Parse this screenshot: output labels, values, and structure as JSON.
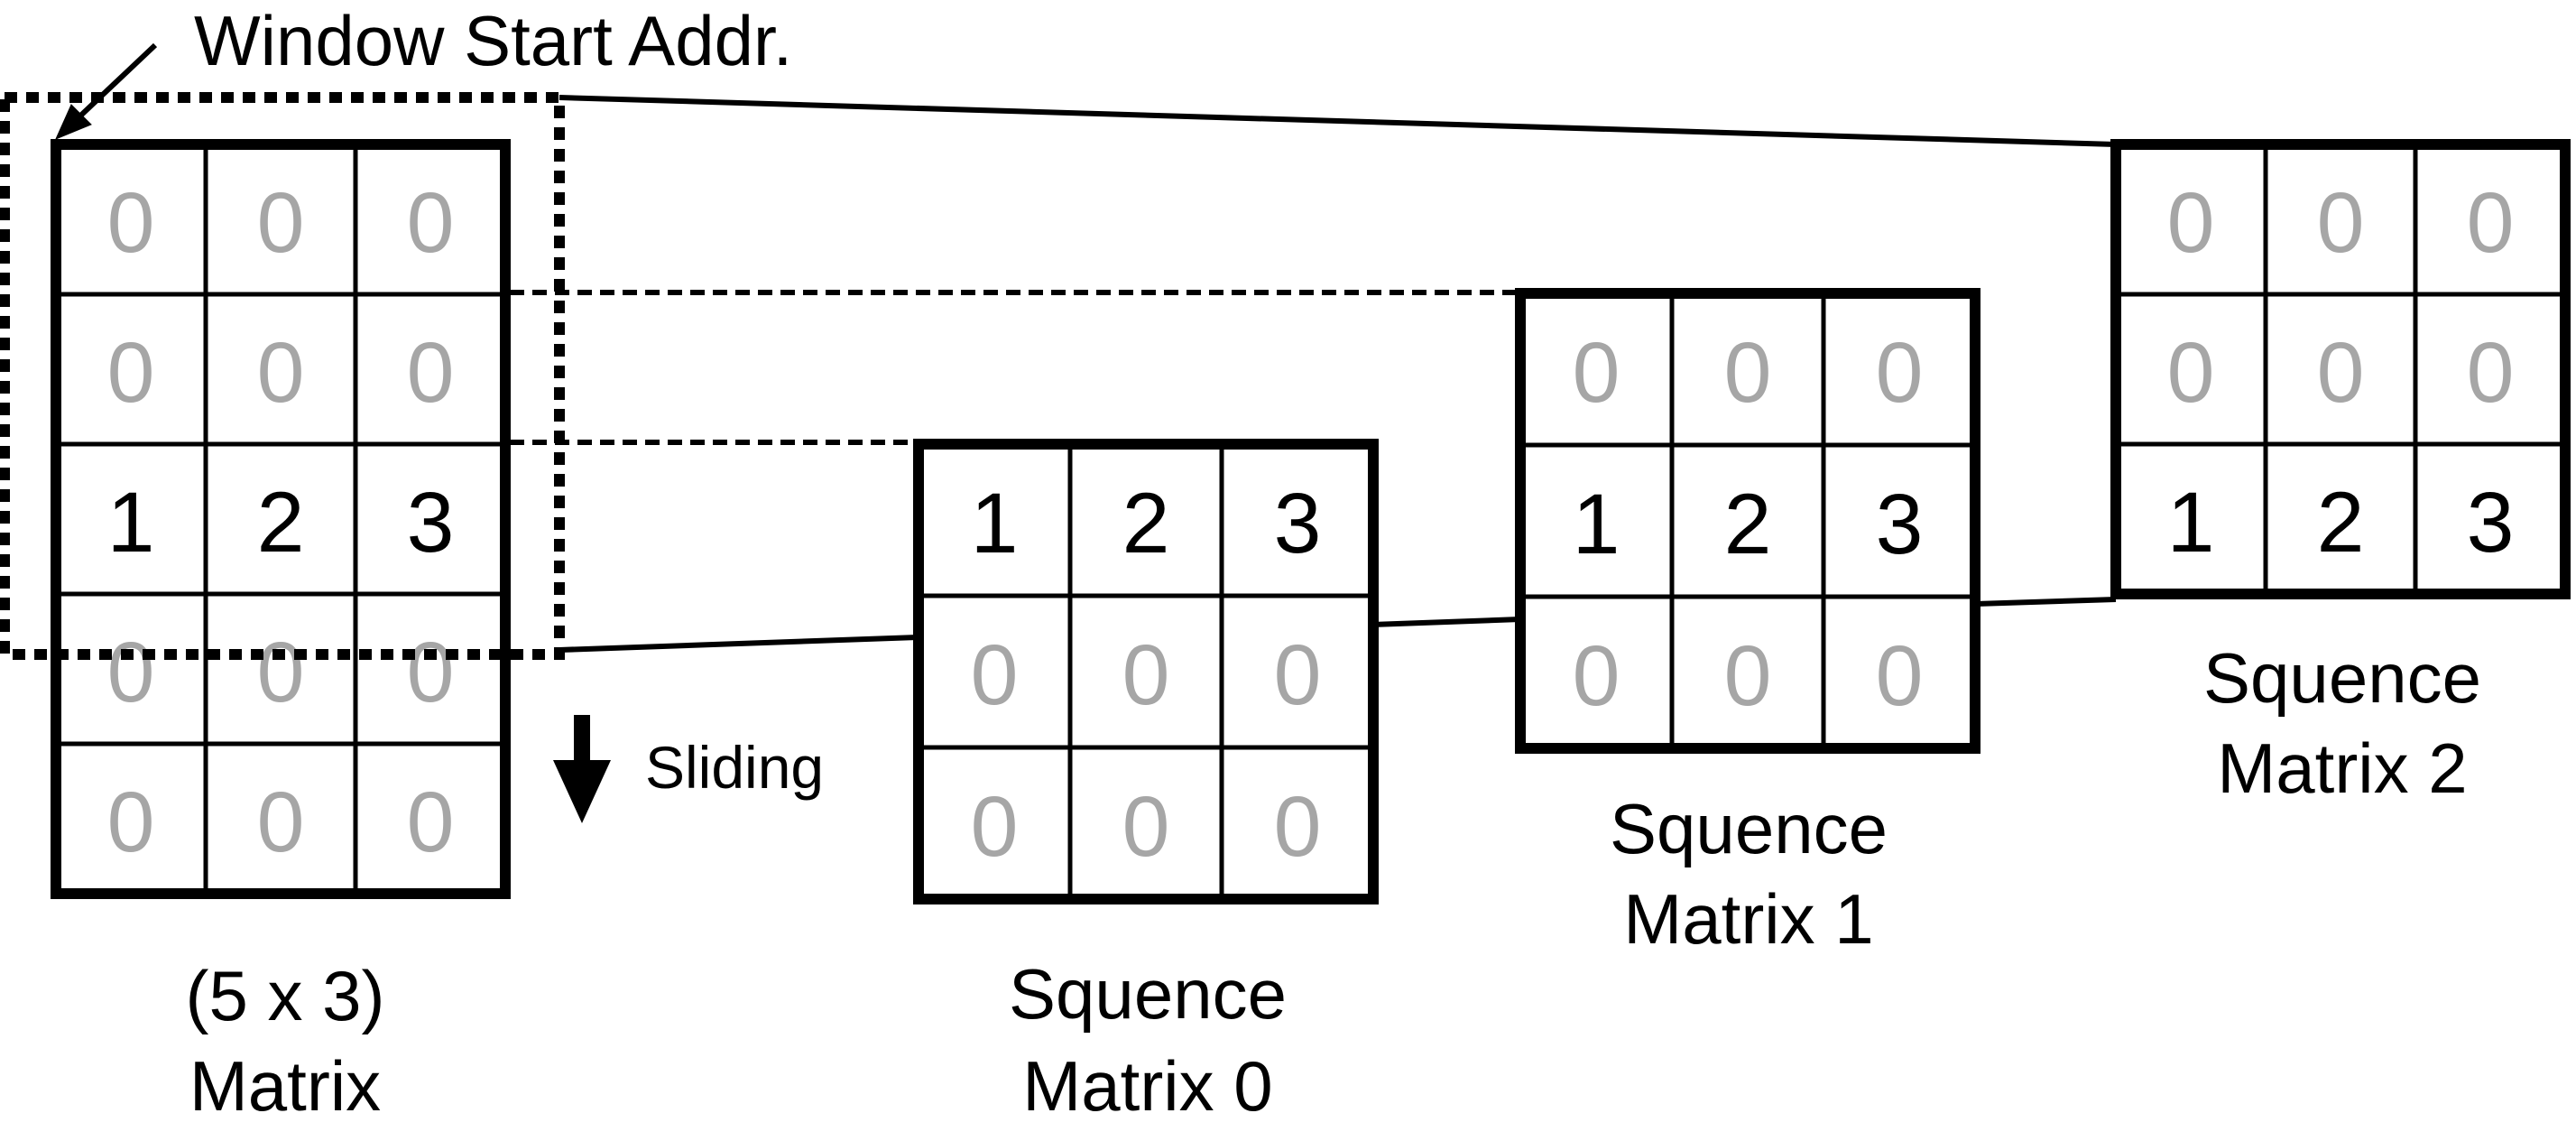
{
  "colors": {
    "one": "#000000",
    "zero": "#a6a6a6",
    "stroke": "#000000"
  },
  "annotation": {
    "window_start": "Window Start Addr.",
    "sliding": "Sliding"
  },
  "source_matrix": {
    "label_line1": "(5 x 3)",
    "label_line2": "Matrix",
    "rows": [
      [
        "0",
        "0",
        "0"
      ],
      [
        "0",
        "0",
        "0"
      ],
      [
        "1",
        "2",
        "3"
      ],
      [
        "0",
        "0",
        "0"
      ],
      [
        "0",
        "0",
        "0"
      ]
    ]
  },
  "sequences": [
    {
      "label_line1": "Squence",
      "label_line2": "Matrix 0",
      "rows": [
        [
          "1",
          "2",
          "3"
        ],
        [
          "0",
          "0",
          "0"
        ],
        [
          "0",
          "0",
          "0"
        ]
      ]
    },
    {
      "label_line1": "Squence",
      "label_line2": "Matrix 1",
      "rows": [
        [
          "0",
          "0",
          "0"
        ],
        [
          "1",
          "2",
          "3"
        ],
        [
          "0",
          "0",
          "0"
        ]
      ]
    },
    {
      "label_line1": "Squence",
      "label_line2": "Matrix 2",
      "rows": [
        [
          "0",
          "0",
          "0"
        ],
        [
          "0",
          "0",
          "0"
        ],
        [
          "1",
          "2",
          "3"
        ]
      ]
    }
  ]
}
